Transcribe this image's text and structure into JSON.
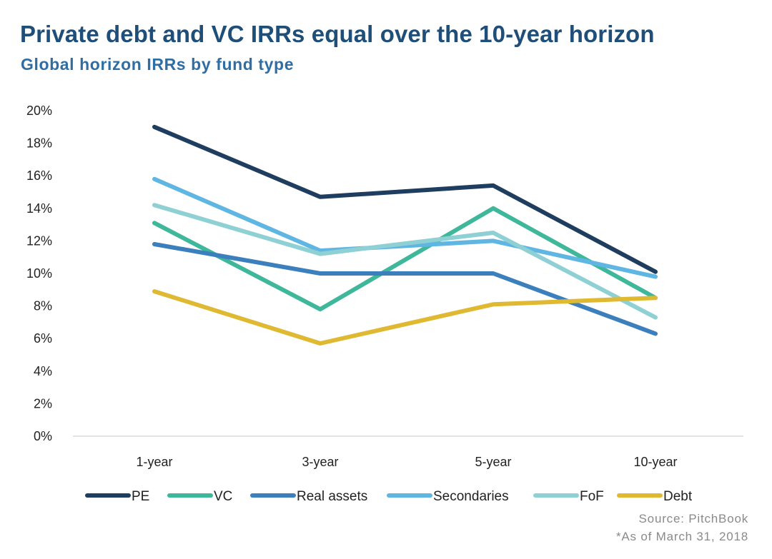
{
  "title": "Private debt and VC IRRs equal over the 10-year horizon",
  "subtitle": "Global horizon IRRs by fund type",
  "source": "Source: PitchBook",
  "as_of": "*As of March 31, 2018",
  "chart_data": {
    "type": "line",
    "title": "Private debt and VC IRRs equal over the 10-year horizon",
    "subtitle": "Global horizon IRRs by fund type",
    "xlabel": "",
    "ylabel": "",
    "categories": [
      "1-year",
      "3-year",
      "5-year",
      "10-year"
    ],
    "ylim": [
      0,
      20
    ],
    "yticks": [
      0,
      2,
      4,
      6,
      8,
      10,
      12,
      14,
      16,
      18,
      20
    ],
    "ytick_labels": [
      "0%",
      "2%",
      "4%",
      "6%",
      "8%",
      "10%",
      "12%",
      "14%",
      "16%",
      "18%",
      "20%"
    ],
    "grid": false,
    "legend_position": "bottom",
    "series": [
      {
        "name": "PE",
        "color": "#1f3d5e",
        "values": [
          19.0,
          14.7,
          15.4,
          10.1
        ]
      },
      {
        "name": "VC",
        "color": "#3eb79a",
        "values": [
          13.1,
          7.8,
          14.0,
          8.5
        ]
      },
      {
        "name": "Real assets",
        "color": "#3c7fbd",
        "values": [
          11.8,
          10.0,
          10.0,
          6.3
        ]
      },
      {
        "name": "Secondaries",
        "color": "#5fb6e2",
        "values": [
          15.8,
          11.4,
          12.0,
          9.8
        ]
      },
      {
        "name": "FoF",
        "color": "#8ed0d4",
        "values": [
          14.2,
          11.2,
          12.5,
          7.3
        ]
      },
      {
        "name": "Debt",
        "color": "#e0b933",
        "values": [
          8.9,
          5.7,
          8.1,
          8.5
        ]
      }
    ]
  }
}
